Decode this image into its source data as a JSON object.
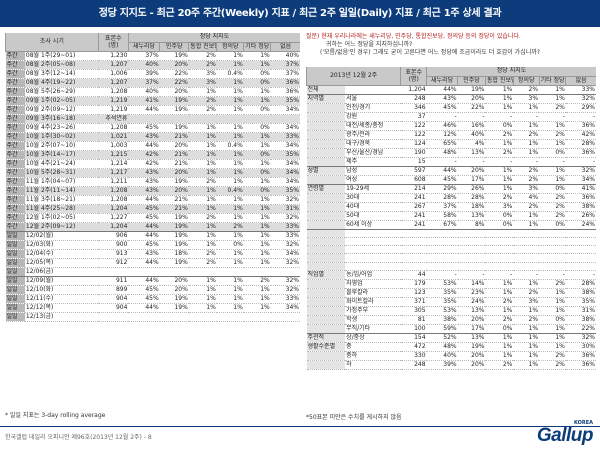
{
  "title": "정당 지지도 - 최근 20주 주간(Weekly) 지표 / 최근 2주 일일(Daily) 지표 / 최근 1주 상세 결과",
  "left_table": {
    "headers": {
      "survey_period": "조사 시기",
      "sample": "표본수 (명)",
      "support_group": "정당 지지도",
      "saenuri": "새누리당",
      "minju": "민주당",
      "tonghap": "통합 진보당",
      "jeongui": "정의당",
      "other": "기타 정당",
      "none": "없음"
    },
    "weekly_rows": [
      {
        "label": "주간",
        "period": "08월 1주(29~01)",
        "n": "1,230",
        "s": "37%",
        "m": "19%",
        "t": "2%",
        "j": "1%",
        "o": "1%",
        "x": "40%"
      },
      {
        "label": "주간",
        "period": "08월 2주(05~08)",
        "n": "1,207",
        "s": "40%",
        "m": "20%",
        "t": "2%",
        "j": "1%",
        "o": "1%",
        "x": "37%"
      },
      {
        "label": "주간",
        "period": "08월 3주(12~14)",
        "n": "1,006",
        "s": "39%",
        "m": "22%",
        "t": "3%",
        "j": "0.4%",
        "o": "0%",
        "x": "37%"
      },
      {
        "label": "주간",
        "period": "08월 4주(19~22)",
        "n": "1,207",
        "s": "37%",
        "m": "22%",
        "t": "3%",
        "j": "1%",
        "o": "0%",
        "x": "36%"
      },
      {
        "label": "주간",
        "period": "08월 5주(26~29)",
        "n": "1,208",
        "s": "40%",
        "m": "20%",
        "t": "1%",
        "j": "1%",
        "o": "1%",
        "x": "36%"
      },
      {
        "label": "주간",
        "period": "09월 1주(02~05)",
        "n": "1,219",
        "s": "41%",
        "m": "19%",
        "t": "2%",
        "j": "1%",
        "o": "1%",
        "x": "35%"
      },
      {
        "label": "주간",
        "period": "09월 2주(09~12)",
        "n": "1,219",
        "s": "44%",
        "m": "19%",
        "t": "2%",
        "j": "1%",
        "o": "0%",
        "x": "34%"
      },
      {
        "label": "주간",
        "period": "09월 3주(16~18)",
        "n": "추석연휴",
        "s": "",
        "m": "",
        "t": "",
        "j": "",
        "o": "",
        "x": ""
      },
      {
        "label": "주간",
        "period": "09월 4주(23~26)",
        "n": "1,208",
        "s": "45%",
        "m": "19%",
        "t": "1%",
        "j": "1%",
        "o": "0%",
        "x": "34%"
      },
      {
        "label": "주간",
        "period": "10월 1주(30~02)",
        "n": "1,021",
        "s": "43%",
        "m": "21%",
        "t": "1%",
        "j": "1%",
        "o": "1%",
        "x": "33%"
      },
      {
        "label": "주간",
        "period": "10월 2주(07~10)",
        "n": "1,003",
        "s": "44%",
        "m": "20%",
        "t": "1%",
        "j": "0.4%",
        "o": "1%",
        "x": "34%"
      },
      {
        "label": "주간",
        "period": "10월 3주(14~17)",
        "n": "1,215",
        "s": "42%",
        "m": "21%",
        "t": "1%",
        "j": "1%",
        "o": "0%",
        "x": "35%"
      },
      {
        "label": "주간",
        "period": "10월 4주(21~24)",
        "n": "1,214",
        "s": "42%",
        "m": "21%",
        "t": "1%",
        "j": "1%",
        "o": "1%",
        "x": "34%"
      },
      {
        "label": "주간",
        "period": "10월 5주(28~31)",
        "n": "1,217",
        "s": "43%",
        "m": "20%",
        "t": "1%",
        "j": "1%",
        "o": "0%",
        "x": "34%"
      },
      {
        "label": "주간",
        "period": "11월 1주(04~07)",
        "n": "1,211",
        "s": "43%",
        "m": "19%",
        "t": "2%",
        "j": "1%",
        "o": "1%",
        "x": "34%"
      },
      {
        "label": "주간",
        "period": "11월 2주(11~14)",
        "n": "1,208",
        "s": "43%",
        "m": "20%",
        "t": "1%",
        "j": "0.4%",
        "o": "0%",
        "x": "35%"
      },
      {
        "label": "주간",
        "period": "11월 3주(18~21)",
        "n": "1,208",
        "s": "44%",
        "m": "21%",
        "t": "1%",
        "j": "1%",
        "o": "1%",
        "x": "32%"
      },
      {
        "label": "주간",
        "period": "11월 4주(25~28)",
        "n": "1,204",
        "s": "45%",
        "m": "21%",
        "t": "1%",
        "j": "1%",
        "o": "1%",
        "x": "31%"
      },
      {
        "label": "주간",
        "period": "12월 1주(02~05)",
        "n": "1,227",
        "s": "45%",
        "m": "19%",
        "t": "2%",
        "j": "1%",
        "o": "1%",
        "x": "32%"
      },
      {
        "label": "주간",
        "period": "12월 2주(09~12)",
        "n": "1,204",
        "s": "44%",
        "m": "19%",
        "t": "1%",
        "j": "2%",
        "o": "1%",
        "x": "33%"
      }
    ],
    "daily_rows": [
      {
        "label": "일일",
        "period": "12/02(월)",
        "n": "906",
        "s": "44%",
        "m": "19%",
        "t": "1%",
        "j": "1%",
        "o": "1%",
        "x": "33%"
      },
      {
        "label": "일일",
        "period": "12/03(화)",
        "n": "900",
        "s": "45%",
        "m": "19%",
        "t": "1%",
        "j": "0%",
        "o": "1%",
        "x": "32%"
      },
      {
        "label": "일일",
        "period": "12/04(수)",
        "n": "913",
        "s": "43%",
        "m": "18%",
        "t": "2%",
        "j": "1%",
        "o": "1%",
        "x": "34%"
      },
      {
        "label": "일일",
        "period": "12/05(목)",
        "n": "912",
        "s": "44%",
        "m": "19%",
        "t": "2%",
        "j": "1%",
        "o": "1%",
        "x": "32%"
      },
      {
        "label": "일일",
        "period": "12/06(금)",
        "n": "",
        "s": "",
        "m": "",
        "t": "",
        "j": "",
        "o": "",
        "x": ""
      },
      {
        "label": "일일",
        "period": "12/09(월)",
        "n": "911",
        "s": "44%",
        "m": "20%",
        "t": "1%",
        "j": "1%",
        "o": "2%",
        "x": "32%"
      },
      {
        "label": "일일",
        "period": "12/10(화)",
        "n": "899",
        "s": "45%",
        "m": "20%",
        "t": "1%",
        "j": "1%",
        "o": "1%",
        "x": "32%"
      },
      {
        "label": "일일",
        "period": "12/11(수)",
        "n": "904",
        "s": "45%",
        "m": "19%",
        "t": "1%",
        "j": "1%",
        "o": "1%",
        "x": "33%"
      },
      {
        "label": "일일",
        "period": "12/12(목)",
        "n": "904",
        "s": "44%",
        "m": "19%",
        "t": "1%",
        "j": "1%",
        "o": "1%",
        "x": "34%"
      },
      {
        "label": "일일",
        "period": "12/13(금)",
        "n": "",
        "s": "",
        "m": "",
        "t": "",
        "j": "",
        "o": "",
        "x": ""
      }
    ]
  },
  "question": {
    "line1": "질문) 현재 우리나라에는 새누리당, 민주당, 통합진보당, 정의당 등의 정당이 있습니다.",
    "line2": "귀하는 어느 정당을 지지하십니까?",
    "line3": "('모름/없음'인 경우) 그래도 굳이 고른다면 어느 정당에 조금이라도 더 호감이 가십니까?"
  },
  "right_table": {
    "headers": {
      "period": "2013년 12월 2주",
      "sample": "표본수 (명)",
      "support_group": "정당 지지도",
      "saenuri": "새누리당",
      "minju": "민주당",
      "tonghap": "통합 진보당",
      "jeongui": "정의당",
      "other": "기타 정당",
      "none": "없음"
    },
    "rows": [
      {
        "g": "전체",
        "c": "",
        "n": "1,204",
        "s": "44%",
        "m": "19%",
        "t": "1%",
        "j": "2%",
        "o": "1%",
        "x": "33%",
        "sep": true
      },
      {
        "g": "지역별",
        "c": "서울",
        "n": "248",
        "s": "43%",
        "m": "20%",
        "t": "1%",
        "j": "3%",
        "o": "1%",
        "x": "32%"
      },
      {
        "g": "",
        "c": "인천/경기",
        "n": "346",
        "s": "45%",
        "m": "22%",
        "t": "1%",
        "j": "1%",
        "o": "2%",
        "x": "29%"
      },
      {
        "g": "",
        "c": "강원",
        "n": "37",
        "s": "-",
        "m": "-",
        "t": "-",
        "j": "-",
        "o": "-",
        "x": "-"
      },
      {
        "g": "",
        "c": "대전/세종/충청",
        "n": "122",
        "s": "46%",
        "m": "16%",
        "t": "0%",
        "j": "1%",
        "o": "1%",
        "x": "36%"
      },
      {
        "g": "",
        "c": "광주/전라",
        "n": "122",
        "s": "12%",
        "m": "40%",
        "t": "2%",
        "j": "2%",
        "o": "2%",
        "x": "42%"
      },
      {
        "g": "",
        "c": "대구/경북",
        "n": "124",
        "s": "65%",
        "m": "4%",
        "t": "1%",
        "j": "1%",
        "o": "1%",
        "x": "28%"
      },
      {
        "g": "",
        "c": "부산/울산/경남",
        "n": "190",
        "s": "48%",
        "m": "13%",
        "t": "2%",
        "j": "1%",
        "o": "0%",
        "x": "36%"
      },
      {
        "g": "",
        "c": "제주",
        "n": "15",
        "s": "-",
        "m": "-",
        "t": "-",
        "j": "-",
        "o": "-",
        "x": "-",
        "sep": true
      },
      {
        "g": "성별",
        "c": "남성",
        "n": "597",
        "s": "44%",
        "m": "20%",
        "t": "1%",
        "j": "2%",
        "o": "1%",
        "x": "32%"
      },
      {
        "g": "",
        "c": "여성",
        "n": "608",
        "s": "45%",
        "m": "17%",
        "t": "1%",
        "j": "2%",
        "o": "1%",
        "x": "34%",
        "sep": true
      },
      {
        "g": "연령별",
        "c": "19-29세",
        "n": "214",
        "s": "29%",
        "m": "26%",
        "t": "1%",
        "j": "3%",
        "o": "0%",
        "x": "41%"
      },
      {
        "g": "",
        "c": "30대",
        "n": "241",
        "s": "28%",
        "m": "28%",
        "t": "2%",
        "j": "4%",
        "o": "2%",
        "x": "36%"
      },
      {
        "g": "",
        "c": "40대",
        "n": "267",
        "s": "37%",
        "m": "18%",
        "t": "3%",
        "j": "2%",
        "o": "2%",
        "x": "38%"
      },
      {
        "g": "",
        "c": "50대",
        "n": "241",
        "s": "58%",
        "m": "13%",
        "t": "0%",
        "j": "1%",
        "o": "2%",
        "x": "26%"
      },
      {
        "g": "",
        "c": "60세 이상",
        "n": "241",
        "s": "67%",
        "m": "8%",
        "t": "0%",
        "j": "1%",
        "o": "0%",
        "x": "24%",
        "sep": true
      },
      {
        "g": "",
        "c": "",
        "n": "",
        "s": "",
        "m": "",
        "t": "",
        "j": "",
        "o": "",
        "x": ""
      },
      {
        "g": "",
        "c": "",
        "n": "",
        "s": "",
        "m": "",
        "t": "",
        "j": "",
        "o": "",
        "x": ""
      },
      {
        "g": "",
        "c": "",
        "n": "",
        "s": "",
        "m": "",
        "t": "",
        "j": "",
        "o": "",
        "x": ""
      },
      {
        "g": "",
        "c": "",
        "n": "",
        "s": "",
        "m": "",
        "t": "",
        "j": "",
        "o": "",
        "x": ""
      },
      {
        "g": "",
        "c": "",
        "n": "",
        "s": "",
        "m": "",
        "t": "",
        "j": "",
        "o": "",
        "x": ""
      },
      {
        "g": "직업별",
        "c": "농/임/어업",
        "n": "44",
        "s": "-",
        "m": "-",
        "t": "-",
        "j": "-",
        "o": "-",
        "x": "-"
      },
      {
        "g": "",
        "c": "자영업",
        "n": "179",
        "s": "53%",
        "m": "14%",
        "t": "1%",
        "j": "1%",
        "o": "2%",
        "x": "28%"
      },
      {
        "g": "",
        "c": "블루칼라",
        "n": "123",
        "s": "35%",
        "m": "23%",
        "t": "1%",
        "j": "2%",
        "o": "1%",
        "x": "38%"
      },
      {
        "g": "",
        "c": "화이트칼라",
        "n": "371",
        "s": "35%",
        "m": "24%",
        "t": "2%",
        "j": "3%",
        "o": "1%",
        "x": "35%"
      },
      {
        "g": "",
        "c": "가정주부",
        "n": "305",
        "s": "53%",
        "m": "13%",
        "t": "1%",
        "j": "1%",
        "o": "1%",
        "x": "31%"
      },
      {
        "g": "",
        "c": "학생",
        "n": "81",
        "s": "38%",
        "m": "20%",
        "t": "2%",
        "j": "2%",
        "o": "0%",
        "x": "38%"
      },
      {
        "g": "",
        "c": "무직/기타",
        "n": "100",
        "s": "59%",
        "m": "17%",
        "t": "0%",
        "j": "1%",
        "o": "1%",
        "x": "22%",
        "sep": true
      },
      {
        "g": "주관적",
        "c": "상/중상",
        "n": "154",
        "s": "52%",
        "m": "13%",
        "t": "1%",
        "j": "1%",
        "o": "1%",
        "x": "32%"
      },
      {
        "g": "생활수준별",
        "c": "중",
        "n": "472",
        "s": "48%",
        "m": "19%",
        "t": "1%",
        "j": "1%",
        "o": "1%",
        "x": "30%"
      },
      {
        "g": "",
        "c": "중하",
        "n": "330",
        "s": "40%",
        "m": "20%",
        "t": "1%",
        "j": "1%",
        "o": "2%",
        "x": "36%"
      },
      {
        "g": "",
        "c": "하",
        "n": "248",
        "s": "39%",
        "m": "20%",
        "t": "2%",
        "j": "1%",
        "o": "2%",
        "x": "36%"
      }
    ]
  },
  "footnote_left": "* 일일 지표는 3-day rolling average",
  "footnote_right": "*50표본 미만은 수치를 게시하지 않음",
  "page_footer": "한국갤럽 데일리 오피니언 제96호(2013년 12월 2주) - 8",
  "logo": {
    "small": "KOREA",
    "word": "Gallup"
  },
  "colors": {
    "title_bg": "#0c3c7c",
    "header_bg": "#c9c9c9",
    "row_gray": "#dddddd"
  }
}
